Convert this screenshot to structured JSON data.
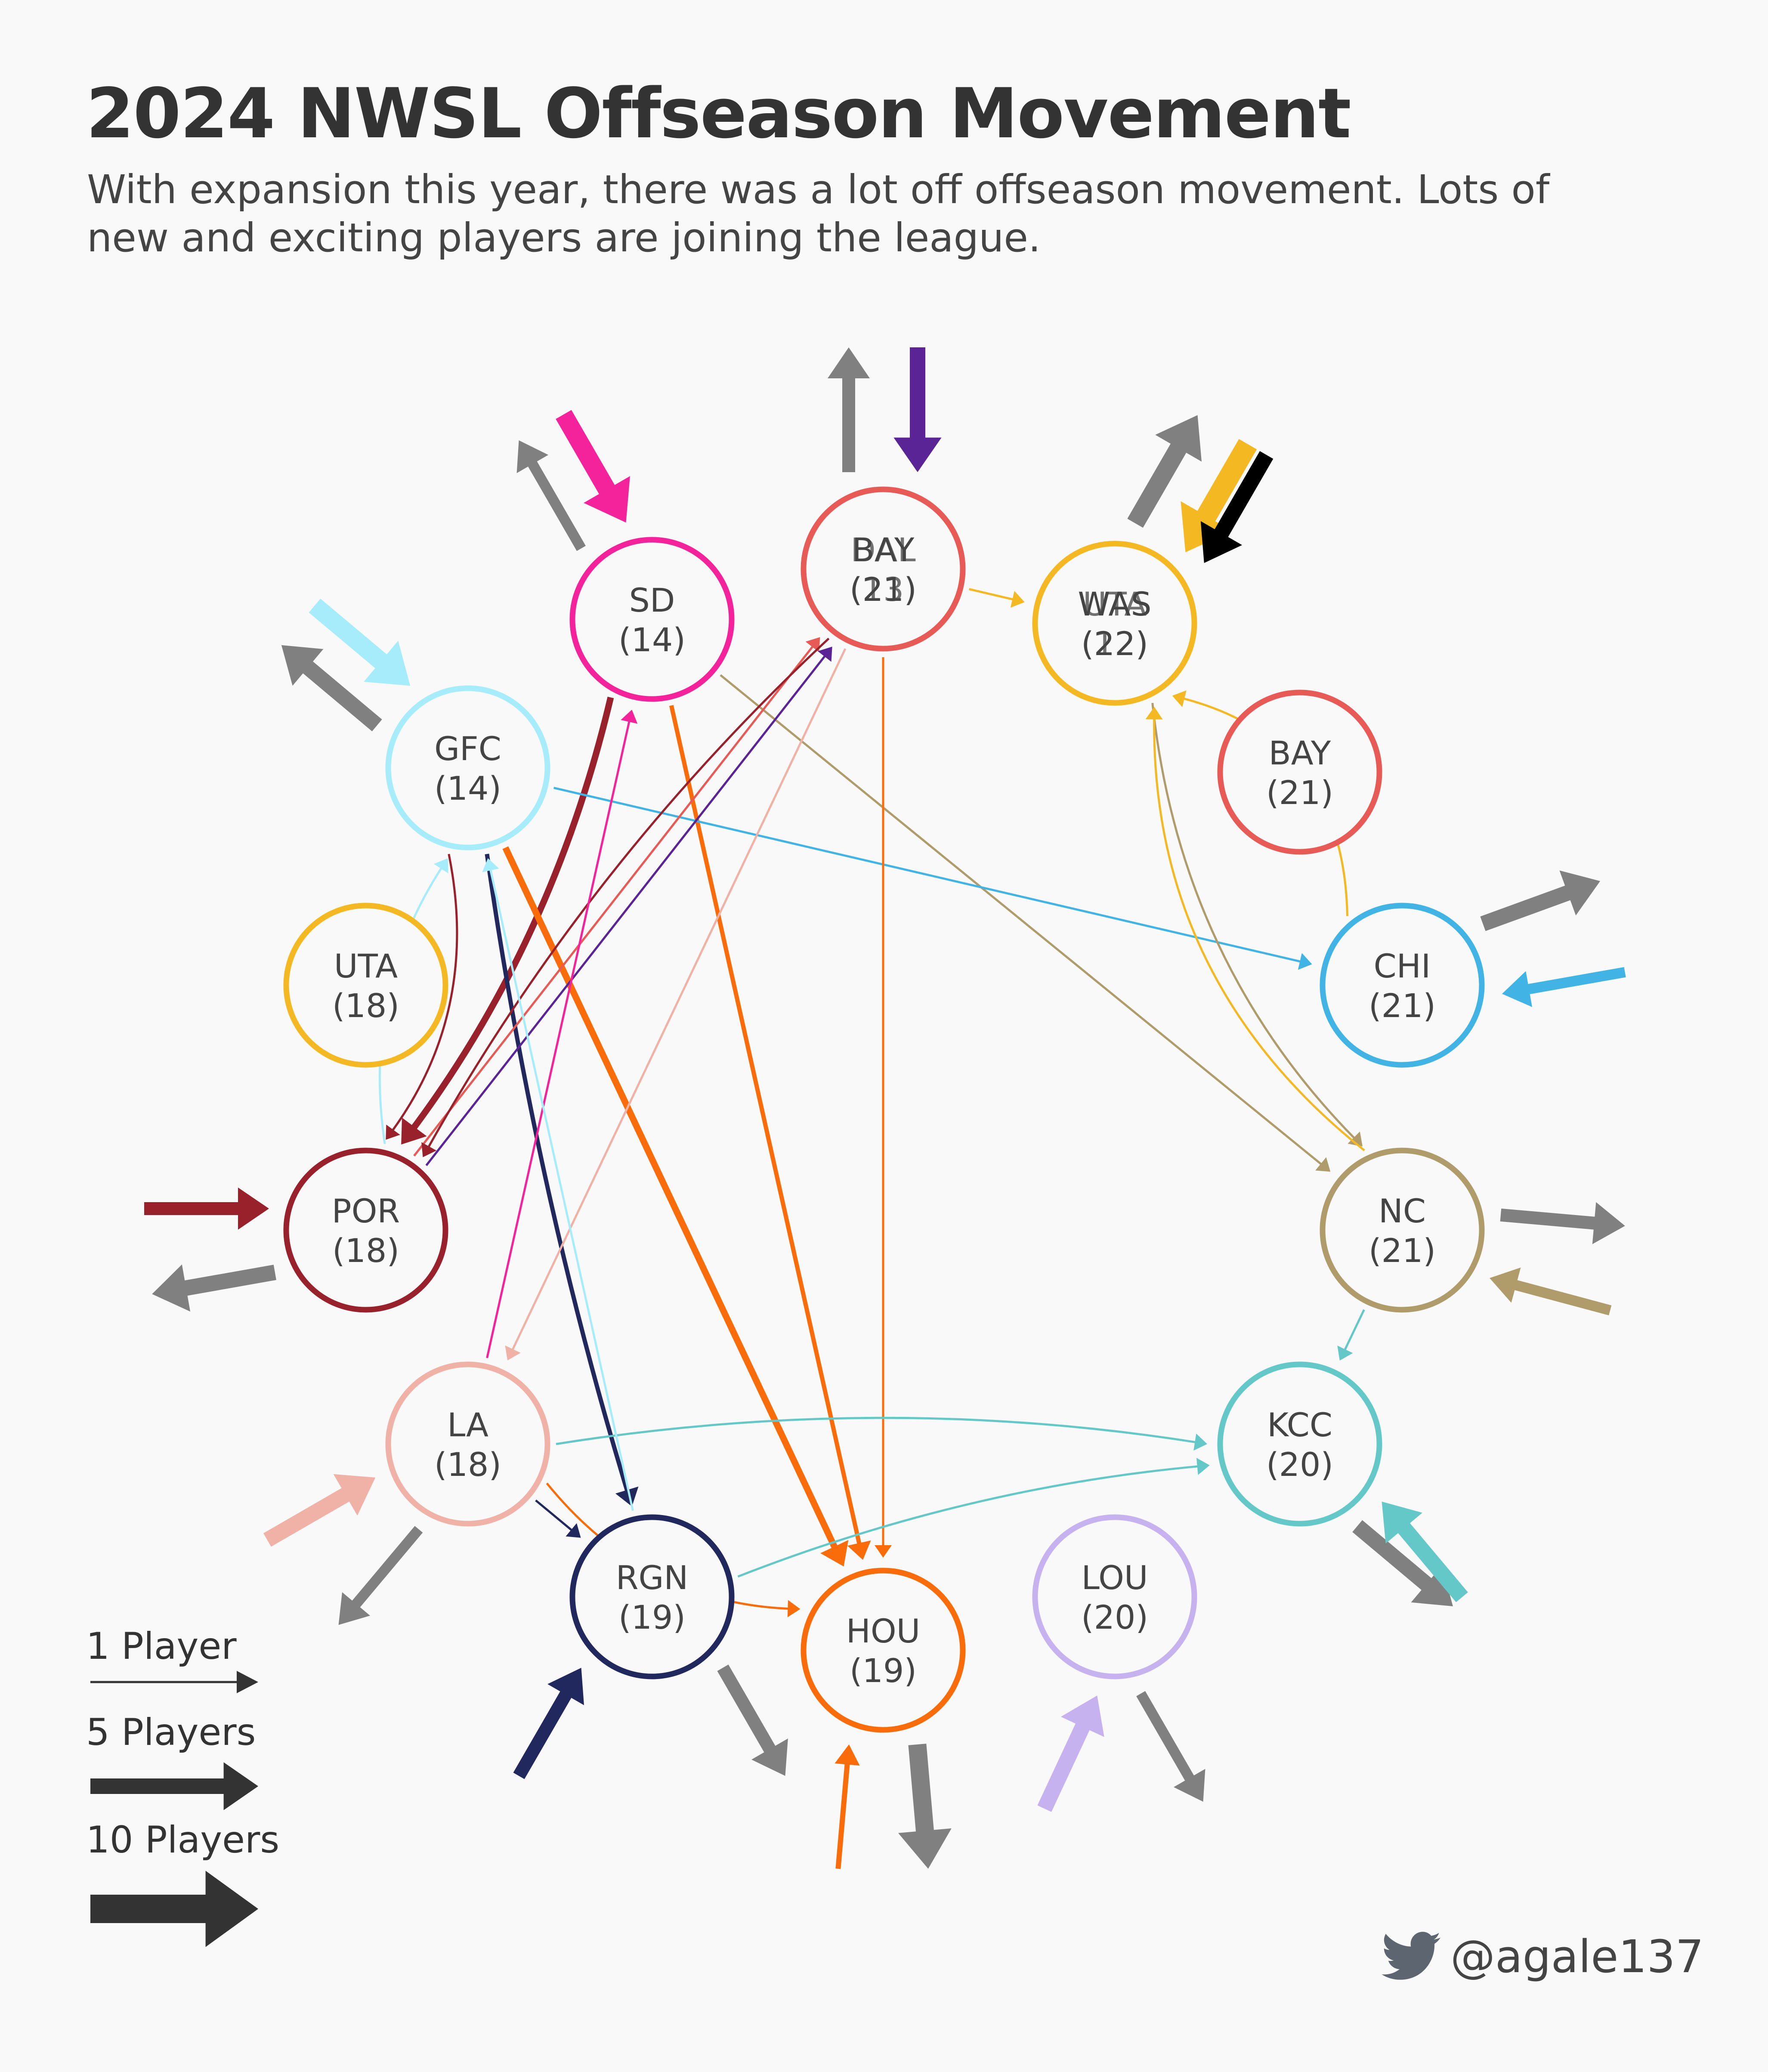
{
  "title": "2024 NWSL Offseason Movement",
  "subtitle": "With expansion this year, there was a lot off offseason movement. Lots of new and exciting players are joining the league.",
  "legend": [
    {
      "label": "1 Player",
      "players": 1
    },
    {
      "label": "5 Players",
      "players": 5
    },
    {
      "label": "10 Players",
      "players": 10
    }
  ],
  "credit": {
    "handle": "@agale137",
    "icon": "twitter-bird-icon"
  },
  "nodes": [
    {
      "id": "BAY1",
      "label": "BAY",
      "count": "(21)",
      "color": "#e85a55",
      "overlay_label": "DAL",
      "overlay_count": "(13)"
    },
    {
      "id": "SD",
      "label": "SD",
      "count": "(14)",
      "color": "#f5239b"
    },
    {
      "id": "WAS",
      "label": "WAS",
      "count": "(22)",
      "color": "#f4b822",
      "overlay_label": "UTA",
      "overlay_count": "(12)"
    },
    {
      "id": "GFC",
      "label": "GFC",
      "count": "(14)",
      "color": "#a6ecfa"
    },
    {
      "id": "BAY2",
      "label": "BAY",
      "count": "(21)",
      "color": "#e85a55"
    },
    {
      "id": "UTA",
      "label": "UTA",
      "count": "(18)",
      "color": "#f4b822"
    },
    {
      "id": "CHI",
      "label": "CHI",
      "count": "(21)",
      "color": "#41b3e5"
    },
    {
      "id": "POR",
      "label": "POR",
      "count": "(18)",
      "color": "#98212b"
    },
    {
      "id": "NC",
      "label": "NC",
      "count": "(21)",
      "color": "#b09b6a"
    },
    {
      "id": "LA",
      "label": "LA",
      "count": "(18)",
      "color": "#f0b2a6"
    },
    {
      "id": "KCC",
      "label": "KCC",
      "count": "(20)",
      "color": "#65c8c8"
    },
    {
      "id": "RGN",
      "label": "RGN",
      "count": "(19)",
      "color": "#21285e"
    },
    {
      "id": "HOU",
      "label": "HOU",
      "count": "(19)",
      "color": "#fa6b0a"
    },
    {
      "id": "LOU",
      "label": "LOU",
      "count": "(20)",
      "color": "#c7b2f0"
    }
  ],
  "outside_color": "#808080",
  "transfers": [
    {
      "from": "BAY1",
      "to": "WAS",
      "players": 1,
      "color": "#f4b822"
    },
    {
      "from": "SD",
      "to": "POR",
      "players": 3,
      "color": "#98212b"
    },
    {
      "from": "SD",
      "to": "HOU",
      "players": 2,
      "color": "#fa6b0a"
    },
    {
      "from": "SD",
      "to": "NC",
      "players": 1,
      "color": "#b09b6a"
    },
    {
      "from": "GFC",
      "to": "CHI",
      "players": 1,
      "color": "#41b3e5"
    },
    {
      "from": "GFC",
      "to": "POR",
      "players": 1,
      "color": "#98212b"
    },
    {
      "from": "GFC",
      "to": "RGN",
      "players": 2,
      "color": "#21285e"
    },
    {
      "from": "GFC",
      "to": "HOU",
      "players": 3,
      "color": "#fa6b0a"
    },
    {
      "from": "POR",
      "to": "GFC",
      "players": 1,
      "color": "#a6ecfa"
    },
    {
      "from": "POR",
      "to": "BAY1",
      "players": 1,
      "color": "#e85a55"
    },
    {
      "from": "POR",
      "to": "BAY1",
      "players": 1,
      "color": "#5b2496"
    },
    {
      "from": "BAY1",
      "to": "POR",
      "players": 1,
      "color": "#98212b"
    },
    {
      "from": "BAY1",
      "to": "LA",
      "players": 1,
      "color": "#f0b2a6"
    },
    {
      "from": "BAY1",
      "to": "HOU",
      "players": 1,
      "color": "#fa6b0a"
    },
    {
      "from": "LA",
      "to": "SD",
      "players": 1,
      "color": "#f5239b"
    },
    {
      "from": "LA",
      "to": "KCC",
      "players": 1,
      "color": "#65c8c8"
    },
    {
      "from": "LA",
      "to": "RGN",
      "players": 1,
      "color": "#21285e"
    },
    {
      "from": "LA",
      "to": "HOU",
      "players": 1,
      "color": "#fa6b0a"
    },
    {
      "from": "RGN",
      "to": "GFC",
      "players": 1,
      "color": "#a6ecfa"
    },
    {
      "from": "RGN",
      "to": "KCC",
      "players": 1,
      "color": "#65c8c8"
    },
    {
      "from": "CHI",
      "to": "WAS",
      "players": 1,
      "color": "#f4b822"
    },
    {
      "from": "WAS",
      "to": "NC",
      "players": 1,
      "color": "#b09b6a"
    },
    {
      "from": "NC",
      "to": "WAS",
      "players": 1,
      "color": "#f4b822"
    },
    {
      "from": "NC",
      "to": "KCC",
      "players": 1,
      "color": "#65c8c8"
    }
  ],
  "external": [
    {
      "team": "SD",
      "dir": "out",
      "players": 3,
      "color": "#808080"
    },
    {
      "team": "SD",
      "dir": "in",
      "players": 6,
      "color": "#f5239b"
    },
    {
      "team": "BAY1",
      "dir": "out",
      "players": 4,
      "color": "#808080"
    },
    {
      "team": "BAY1",
      "dir": "in",
      "players": 5,
      "color": "#5b2496"
    },
    {
      "team": "WAS",
      "dir": "out",
      "players": 6,
      "color": "#808080"
    },
    {
      "team": "WAS",
      "dir": "in",
      "players": 7,
      "color": "#f4b822"
    },
    {
      "team": "WAS",
      "dir": "in",
      "players": 5,
      "color": "#000000"
    },
    {
      "team": "GFC",
      "dir": "in",
      "players": 6,
      "color": "#a6ecfa"
    },
    {
      "team": "GFC",
      "dir": "out",
      "players": 5,
      "color": "#808080"
    },
    {
      "team": "CHI",
      "dir": "out",
      "players": 5,
      "color": "#808080"
    },
    {
      "team": "CHI",
      "dir": "in",
      "players": 3,
      "color": "#41b3e5"
    },
    {
      "team": "POR",
      "dir": "in",
      "players": 4,
      "color": "#98212b"
    },
    {
      "team": "POR",
      "dir": "out",
      "players": 5,
      "color": "#808080"
    },
    {
      "team": "NC",
      "dir": "out",
      "players": 4,
      "color": "#808080"
    },
    {
      "team": "NC",
      "dir": "in",
      "players": 3,
      "color": "#b09b6a"
    },
    {
      "team": "LA",
      "dir": "in",
      "players": 5,
      "color": "#f0b2a6"
    },
    {
      "team": "LA",
      "dir": "out",
      "players": 3,
      "color": "#808080"
    },
    {
      "team": "KCC",
      "dir": "out",
      "players": 5,
      "color": "#808080"
    },
    {
      "team": "KCC",
      "dir": "in",
      "players": 5,
      "color": "#65c8c8"
    },
    {
      "team": "RGN",
      "dir": "in",
      "players": 4,
      "color": "#21285e"
    },
    {
      "team": "RGN",
      "dir": "out",
      "players": 4,
      "color": "#808080"
    },
    {
      "team": "HOU",
      "dir": "in",
      "players": 1,
      "color": "#fa6b0a"
    },
    {
      "team": "HOU",
      "dir": "out",
      "players": 6,
      "color": "#808080"
    },
    {
      "team": "LOU",
      "dir": "in",
      "players": 5,
      "color": "#c7b2f0"
    },
    {
      "team": "LOU",
      "dir": "out",
      "players": 3,
      "color": "#808080"
    }
  ]
}
